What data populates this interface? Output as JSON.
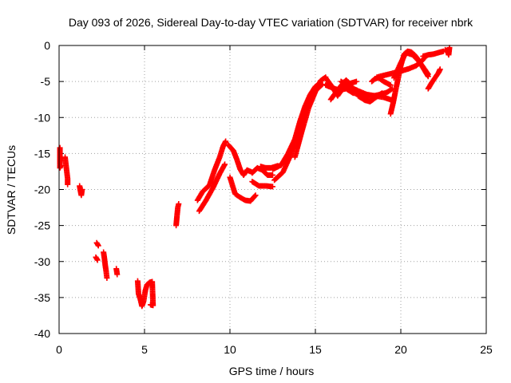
{
  "chart_data": {
    "type": "scatter",
    "title": "Day 093 of 2026, Sidereal Day-to-day VTEC variation (SDTVAR) for receiver nbrk",
    "xlabel": "GPS time / hours",
    "ylabel": "SDTVAR / TECUs",
    "xlim": [
      0,
      25
    ],
    "ylim": [
      -40,
      0
    ],
    "xticks": [
      0,
      5,
      10,
      15,
      20,
      25
    ],
    "yticks": [
      0,
      -5,
      -10,
      -15,
      -20,
      -25,
      -30,
      -35,
      -40
    ],
    "xtick_labels": [
      "0",
      "5",
      "10",
      "15",
      "20",
      "25"
    ],
    "ytick_labels": [
      "0",
      "-5",
      "-10",
      "-15",
      "-20",
      "-25",
      "-30",
      "-35",
      "-40"
    ],
    "grid": true,
    "legend": "none",
    "marker": "+",
    "series": [
      {
        "name": "SDTVAR",
        "color": "#ff0000",
        "segments": [
          [
            [
              0.05,
              -14.2
            ],
            [
              0.05,
              -16.2
            ],
            [
              0.05,
              -17.0
            ],
            [
              0.1,
              -16.7
            ]
          ],
          [
            [
              0.35,
              -15.5
            ],
            [
              0.4,
              -16.5
            ],
            [
              0.45,
              -17.5
            ],
            [
              0.5,
              -18.5
            ],
            [
              0.5,
              -19.3
            ]
          ],
          [
            [
              1.2,
              -19.5
            ],
            [
              1.25,
              -20.2
            ],
            [
              1.3,
              -20.8
            ],
            [
              1.35,
              -20.0
            ]
          ],
          [
            [
              2.2,
              -27.4
            ],
            [
              2.3,
              -27.8
            ]
          ],
          [
            [
              2.15,
              -29.4
            ],
            [
              2.25,
              -29.8
            ]
          ],
          [
            [
              2.6,
              -28.7
            ],
            [
              2.65,
              -29.5
            ],
            [
              2.7,
              -30.5
            ],
            [
              2.75,
              -31.3
            ],
            [
              2.8,
              -32.3
            ]
          ],
          [
            [
              3.35,
              -31.0
            ],
            [
              3.4,
              -31.8
            ]
          ],
          [
            [
              4.6,
              -32.7
            ],
            [
              4.65,
              -34.5
            ],
            [
              4.75,
              -35.2
            ],
            [
              4.85,
              -36.2
            ],
            [
              4.95,
              -35.5
            ],
            [
              5.05,
              -34.0
            ],
            [
              5.15,
              -33.2
            ],
            [
              5.3,
              -32.9
            ],
            [
              5.45,
              -32.8
            ],
            [
              5.5,
              -36.1
            ],
            [
              5.35,
              -36.0
            ]
          ],
          [
            [
              6.85,
              -25.0
            ],
            [
              6.9,
              -23.7
            ],
            [
              6.95,
              -22.5
            ],
            [
              7.0,
              -22.0
            ]
          ],
          [
            [
              8.1,
              -21.5
            ],
            [
              8.4,
              -20.3
            ],
            [
              8.8,
              -19.4
            ],
            [
              9.1,
              -17.3
            ],
            [
              9.4,
              -15.5
            ],
            [
              9.6,
              -14.0
            ],
            [
              9.75,
              -13.3
            ]
          ],
          [
            [
              8.2,
              -23.0
            ],
            [
              8.6,
              -21.5
            ],
            [
              9.0,
              -19.8
            ],
            [
              9.4,
              -17.8
            ],
            [
              9.7,
              -16.5
            ]
          ],
          [
            [
              9.9,
              -13.8
            ],
            [
              10.2,
              -14.6
            ],
            [
              10.4,
              -15.8
            ],
            [
              10.6,
              -17.2
            ],
            [
              10.8,
              -18.0
            ],
            [
              11.0,
              -17.3
            ],
            [
              11.3,
              -17.6
            ]
          ],
          [
            [
              10.0,
              -18.3
            ],
            [
              10.3,
              -20.6
            ],
            [
              10.6,
              -21.1
            ],
            [
              10.9,
              -21.5
            ],
            [
              11.2,
              -21.6
            ],
            [
              11.5,
              -20.8
            ]
          ],
          [
            [
              11.3,
              -17.7
            ],
            [
              11.6,
              -17.0
            ],
            [
              11.9,
              -17.3
            ],
            [
              12.2,
              -18.0
            ],
            [
              12.5,
              -18.0
            ]
          ],
          [
            [
              11.3,
              -18.9
            ],
            [
              11.7,
              -19.5
            ],
            [
              12.1,
              -19.5
            ],
            [
              12.5,
              -19.6
            ]
          ],
          [
            [
              11.8,
              -16.8
            ],
            [
              12.1,
              -17.0
            ],
            [
              12.4,
              -17.0
            ],
            [
              12.8,
              -16.7
            ]
          ],
          [
            [
              12.5,
              -17.2
            ],
            [
              13.0,
              -16.6
            ],
            [
              13.4,
              -15.0
            ],
            [
              13.8,
              -13.0
            ],
            [
              14.1,
              -10.5
            ],
            [
              14.4,
              -8.4
            ],
            [
              14.7,
              -6.8
            ],
            [
              15.0,
              -5.7
            ],
            [
              15.3,
              -5.2
            ]
          ],
          [
            [
              12.6,
              -18.7
            ],
            [
              13.1,
              -17.6
            ],
            [
              13.5,
              -15.5
            ],
            [
              13.9,
              -12.6
            ],
            [
              14.3,
              -9.6
            ],
            [
              14.6,
              -7.7
            ],
            [
              15.0,
              -6.3
            ],
            [
              15.4,
              -5.4
            ]
          ],
          [
            [
              13.8,
              -15.5
            ],
            [
              14.2,
              -12.0
            ],
            [
              14.6,
              -8.7
            ],
            [
              15.0,
              -6.4
            ],
            [
              15.3,
              -4.9
            ],
            [
              15.6,
              -4.4
            ]
          ],
          [
            [
              15.6,
              -4.5
            ],
            [
              16.0,
              -5.8
            ],
            [
              16.3,
              -7.0
            ],
            [
              16.6,
              -6.0
            ],
            [
              17.0,
              -5.3
            ],
            [
              17.4,
              -5.0
            ]
          ],
          [
            [
              15.6,
              -5.5
            ],
            [
              16.0,
              -5.9
            ],
            [
              16.4,
              -6.2
            ],
            [
              16.8,
              -6.0
            ],
            [
              17.2,
              -6.6
            ],
            [
              17.6,
              -6.7
            ],
            [
              18.0,
              -7.2
            ],
            [
              18.4,
              -7.0
            ],
            [
              18.8,
              -6.8
            ],
            [
              19.2,
              -6.5
            ],
            [
              19.5,
              -6.0
            ]
          ],
          [
            [
              16.5,
              -5.0
            ],
            [
              17.0,
              -5.7
            ],
            [
              17.5,
              -6.3
            ],
            [
              18.0,
              -6.8
            ],
            [
              18.5,
              -7.0
            ],
            [
              19.0,
              -7.2
            ],
            [
              19.5,
              -7.6
            ]
          ],
          [
            [
              15.9,
              -7.5
            ],
            [
              16.3,
              -6.2
            ],
            [
              16.6,
              -5.3
            ],
            [
              16.8,
              -4.8
            ],
            [
              17.0,
              -5.3
            ]
          ],
          [
            [
              18.3,
              -5.0
            ],
            [
              18.5,
              -4.6
            ],
            [
              18.7,
              -4.5
            ],
            [
              19.0,
              -5.0
            ],
            [
              19.4,
              -5.5
            ]
          ],
          [
            [
              17.5,
              -7.0
            ],
            [
              17.9,
              -7.6
            ],
            [
              18.2,
              -7.8
            ],
            [
              18.6,
              -7.1
            ],
            [
              18.9,
              -6.6
            ]
          ],
          [
            [
              19.4,
              -9.5
            ],
            [
              19.55,
              -8.0
            ],
            [
              19.7,
              -6.2
            ],
            [
              19.85,
              -4.5
            ],
            [
              20.0,
              -2.8
            ],
            [
              20.2,
              -1.2
            ],
            [
              20.4,
              -0.8
            ],
            [
              20.6,
              -0.9
            ],
            [
              20.8,
              -1.3
            ],
            [
              21.0,
              -1.9
            ],
            [
              21.2,
              -2.7
            ],
            [
              21.4,
              -3.5
            ],
            [
              21.6,
              -4.3
            ]
          ],
          [
            [
              19.6,
              -4.5
            ],
            [
              20.0,
              -2.4
            ],
            [
              20.3,
              -1.0
            ],
            [
              20.7,
              -1.3
            ],
            [
              21.1,
              -2.3
            ],
            [
              21.4,
              -3.3
            ],
            [
              21.6,
              -4.0
            ]
          ],
          [
            [
              18.6,
              -4.4
            ],
            [
              19.1,
              -4.1
            ],
            [
              19.6,
              -3.8
            ],
            [
              20.1,
              -3.5
            ],
            [
              20.5,
              -3.2
            ],
            [
              20.9,
              -2.8
            ],
            [
              21.2,
              -2.2
            ],
            [
              21.4,
              -1.7
            ]
          ],
          [
            [
              21.3,
              -1.5
            ],
            [
              21.6,
              -1.3
            ],
            [
              21.9,
              -1.2
            ],
            [
              22.2,
              -1.0
            ],
            [
              22.5,
              -0.8
            ]
          ],
          [
            [
              21.6,
              -6.0
            ],
            [
              21.8,
              -5.2
            ],
            [
              22.0,
              -4.5
            ],
            [
              22.2,
              -3.8
            ],
            [
              22.3,
              -3.3
            ]
          ],
          [
            [
              22.6,
              -0.6
            ],
            [
              22.75,
              -0.9
            ],
            [
              22.8,
              -1.3
            ],
            [
              22.85,
              -0.3
            ]
          ]
        ]
      }
    ]
  }
}
